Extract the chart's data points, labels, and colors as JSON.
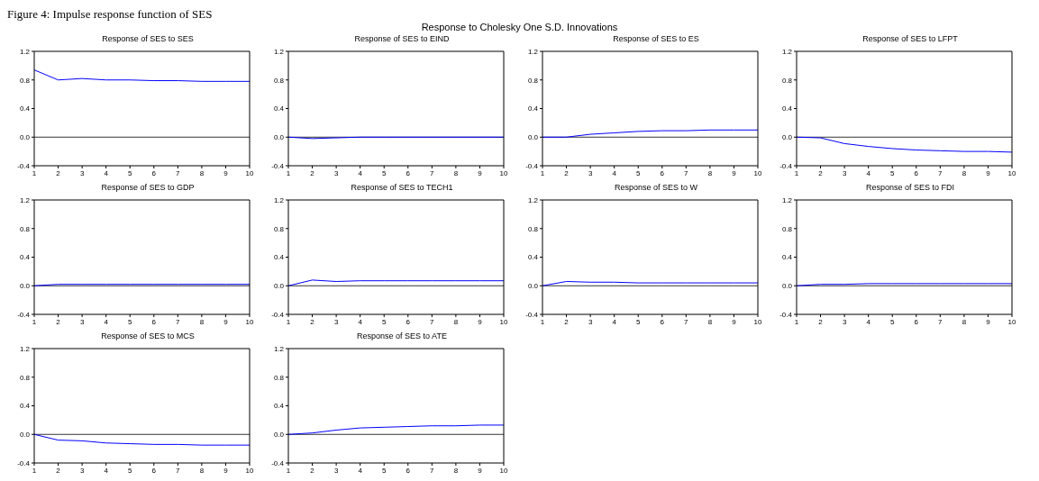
{
  "chart_data": [
    {
      "type": "line",
      "title": "Response of SES to SES",
      "annotations": [
        "Figure 4: Impulse response function of SES",
        "Response to Cholesky One S.D. Innovations"
      ],
      "categories": [
        "1",
        "2",
        "3",
        "4",
        "5",
        "6",
        "7",
        "8",
        "9",
        "10"
      ],
      "series": [
        {
          "color": "#0000ff",
          "values": [
            0.94,
            0.8,
            0.82,
            0.8,
            0.8,
            0.79,
            0.79,
            0.78,
            0.78,
            0.78
          ]
        }
      ],
      "ylim": [
        -0.4,
        1.2
      ],
      "yticks": [
        {
          "value": -0.4,
          "label": "-0.4"
        },
        {
          "value": 0,
          "label": "0.0"
        },
        {
          "value": 0.4,
          "label": "0.4"
        },
        {
          "value": 0.8,
          "label": "0.8"
        },
        {
          "value": 1.2,
          "label": "1.2"
        }
      ],
      "ref_lines": [
        {
          "axis": "y",
          "value": 0,
          "color": "#000000"
        }
      ],
      "marker": "none"
    },
    {
      "type": "line",
      "title": "Response of SES to EIND",
      "categories": [
        "1",
        "2",
        "3",
        "4",
        "5",
        "6",
        "7",
        "8",
        "9",
        "10"
      ],
      "series": [
        {
          "color": "#0000ff",
          "values": [
            0,
            -0.02,
            -0.01,
            0,
            0,
            0,
            0,
            0,
            0,
            0
          ]
        }
      ],
      "ylim": [
        -0.4,
        1.2
      ],
      "yticks": [
        {
          "value": -0.4,
          "label": "-0.4"
        },
        {
          "value": 0,
          "label": "0.0"
        },
        {
          "value": 0.4,
          "label": "0.4"
        },
        {
          "value": 0.8,
          "label": "0.8"
        },
        {
          "value": 1.2,
          "label": "1.2"
        }
      ],
      "ref_lines": [
        {
          "axis": "y",
          "value": 0,
          "color": "#000000"
        }
      ],
      "marker": "none"
    },
    {
      "type": "line",
      "title": "Response of SES to ES",
      "categories": [
        "1",
        "2",
        "3",
        "4",
        "5",
        "6",
        "7",
        "8",
        "9",
        "10"
      ],
      "series": [
        {
          "color": "#0000ff",
          "values": [
            0,
            0,
            0.04,
            0.06,
            0.08,
            0.09,
            0.09,
            0.1,
            0.1,
            0.1
          ]
        }
      ],
      "ylim": [
        -0.4,
        1.2
      ],
      "yticks": [
        {
          "value": -0.4,
          "label": "-0.4"
        },
        {
          "value": 0,
          "label": "0.0"
        },
        {
          "value": 0.4,
          "label": "0.4"
        },
        {
          "value": 0.8,
          "label": "0.8"
        },
        {
          "value": 1.2,
          "label": "1.2"
        }
      ],
      "ref_lines": [
        {
          "axis": "y",
          "value": 0,
          "color": "#000000"
        }
      ],
      "marker": "none"
    },
    {
      "type": "line",
      "title": "Response of SES to LFPT",
      "categories": [
        "1",
        "2",
        "3",
        "4",
        "5",
        "6",
        "7",
        "8",
        "9",
        "10"
      ],
      "series": [
        {
          "color": "#0000ff",
          "values": [
            0,
            -0.01,
            -0.09,
            -0.13,
            -0.16,
            -0.18,
            -0.19,
            -0.2,
            -0.2,
            -0.21
          ]
        }
      ],
      "ylim": [
        -0.4,
        1.2
      ],
      "yticks": [
        {
          "value": -0.4,
          "label": "-0.4"
        },
        {
          "value": 0,
          "label": "0.0"
        },
        {
          "value": 0.4,
          "label": "0.4"
        },
        {
          "value": 0.8,
          "label": "0.8"
        },
        {
          "value": 1.2,
          "label": "1.2"
        }
      ],
      "ref_lines": [
        {
          "axis": "y",
          "value": 0,
          "color": "#000000"
        }
      ],
      "marker": "none"
    },
    {
      "type": "line",
      "title": "Response of SES to GDP",
      "categories": [
        "1",
        "2",
        "3",
        "4",
        "5",
        "6",
        "7",
        "8",
        "9",
        "10"
      ],
      "series": [
        {
          "color": "#0000ff",
          "values": [
            0,
            0.02,
            0.02,
            0.02,
            0.02,
            0.02,
            0.02,
            0.02,
            0.02,
            0.02
          ]
        }
      ],
      "ylim": [
        -0.4,
        1.2
      ],
      "yticks": [
        {
          "value": -0.4,
          "label": "-0.4"
        },
        {
          "value": 0,
          "label": "0.0"
        },
        {
          "value": 0.4,
          "label": "0.4"
        },
        {
          "value": 0.8,
          "label": "0.8"
        },
        {
          "value": 1.2,
          "label": "1.2"
        }
      ],
      "ref_lines": [
        {
          "axis": "y",
          "value": 0,
          "color": "#000000"
        }
      ],
      "marker": "none"
    },
    {
      "type": "line",
      "title": "Response of SES to TECH1",
      "categories": [
        "1",
        "2",
        "3",
        "4",
        "5",
        "6",
        "7",
        "8",
        "9",
        "10"
      ],
      "series": [
        {
          "color": "#0000ff",
          "values": [
            0,
            0.08,
            0.06,
            0.07,
            0.07,
            0.07,
            0.07,
            0.07,
            0.07,
            0.07
          ]
        }
      ],
      "ylim": [
        -0.4,
        1.2
      ],
      "yticks": [
        {
          "value": -0.4,
          "label": "-0.4"
        },
        {
          "value": 0,
          "label": "0.0"
        },
        {
          "value": 0.4,
          "label": "0.4"
        },
        {
          "value": 0.8,
          "label": "0.8"
        },
        {
          "value": 1.2,
          "label": "1.2"
        }
      ],
      "ref_lines": [
        {
          "axis": "y",
          "value": 0,
          "color": "#000000"
        }
      ],
      "marker": "none"
    },
    {
      "type": "line",
      "title": "Response of SES to W",
      "categories": [
        "1",
        "2",
        "3",
        "4",
        "5",
        "6",
        "7",
        "8",
        "9",
        "10"
      ],
      "series": [
        {
          "color": "#0000ff",
          "values": [
            0,
            0.06,
            0.05,
            0.05,
            0.04,
            0.04,
            0.04,
            0.04,
            0.04,
            0.04
          ]
        }
      ],
      "ylim": [
        -0.4,
        1.2
      ],
      "yticks": [
        {
          "value": -0.4,
          "label": "-0.4"
        },
        {
          "value": 0,
          "label": "0.0"
        },
        {
          "value": 0.4,
          "label": "0.4"
        },
        {
          "value": 0.8,
          "label": "0.8"
        },
        {
          "value": 1.2,
          "label": "1.2"
        }
      ],
      "ref_lines": [
        {
          "axis": "y",
          "value": 0,
          "color": "#000000"
        }
      ],
      "marker": "none"
    },
    {
      "type": "line",
      "title": "Response of SES to FDI",
      "categories": [
        "1",
        "2",
        "3",
        "4",
        "5",
        "6",
        "7",
        "8",
        "9",
        "10"
      ],
      "series": [
        {
          "color": "#0000ff",
          "values": [
            0,
            0.02,
            0.02,
            0.03,
            0.03,
            0.03,
            0.03,
            0.03,
            0.03,
            0.03
          ]
        }
      ],
      "ylim": [
        -0.4,
        1.2
      ],
      "yticks": [
        {
          "value": -0.4,
          "label": "-0.4"
        },
        {
          "value": 0,
          "label": "0.0"
        },
        {
          "value": 0.4,
          "label": "0.4"
        },
        {
          "value": 0.8,
          "label": "0.8"
        },
        {
          "value": 1.2,
          "label": "1.2"
        }
      ],
      "ref_lines": [
        {
          "axis": "y",
          "value": 0,
          "color": "#000000"
        }
      ],
      "marker": "none"
    },
    {
      "type": "line",
      "title": "Response of SES to MCS",
      "categories": [
        "1",
        "2",
        "3",
        "4",
        "5",
        "6",
        "7",
        "8",
        "9",
        "10"
      ],
      "series": [
        {
          "color": "#0000ff",
          "values": [
            0,
            -0.08,
            -0.09,
            -0.12,
            -0.13,
            -0.14,
            -0.14,
            -0.15,
            -0.15,
            -0.15
          ]
        }
      ],
      "ylim": [
        -0.4,
        1.2
      ],
      "yticks": [
        {
          "value": -0.4,
          "label": "-0.4"
        },
        {
          "value": 0,
          "label": "0.0"
        },
        {
          "value": 0.4,
          "label": "0.4"
        },
        {
          "value": 0.8,
          "label": "0.8"
        },
        {
          "value": 1.2,
          "label": "1.2"
        }
      ],
      "ref_lines": [
        {
          "axis": "y",
          "value": 0,
          "color": "#000000"
        }
      ],
      "marker": "none"
    },
    {
      "type": "line",
      "title": "Response of SES to ATE",
      "categories": [
        "1",
        "2",
        "3",
        "4",
        "5",
        "6",
        "7",
        "8",
        "9",
        "10"
      ],
      "series": [
        {
          "color": "#0000ff",
          "values": [
            0,
            0.02,
            0.06,
            0.09,
            0.1,
            0.11,
            0.12,
            0.12,
            0.13,
            0.13
          ]
        }
      ],
      "ylim": [
        -0.4,
        1.2
      ],
      "yticks": [
        {
          "value": -0.4,
          "label": "-0.4"
        },
        {
          "value": 0,
          "label": "0.0"
        },
        {
          "value": 0.4,
          "label": "0.4"
        },
        {
          "value": 0.8,
          "label": "0.8"
        },
        {
          "value": 1.2,
          "label": "1.2"
        }
      ],
      "ref_lines": [
        {
          "axis": "y",
          "value": 0,
          "color": "#000000"
        }
      ],
      "marker": "none"
    }
  ]
}
